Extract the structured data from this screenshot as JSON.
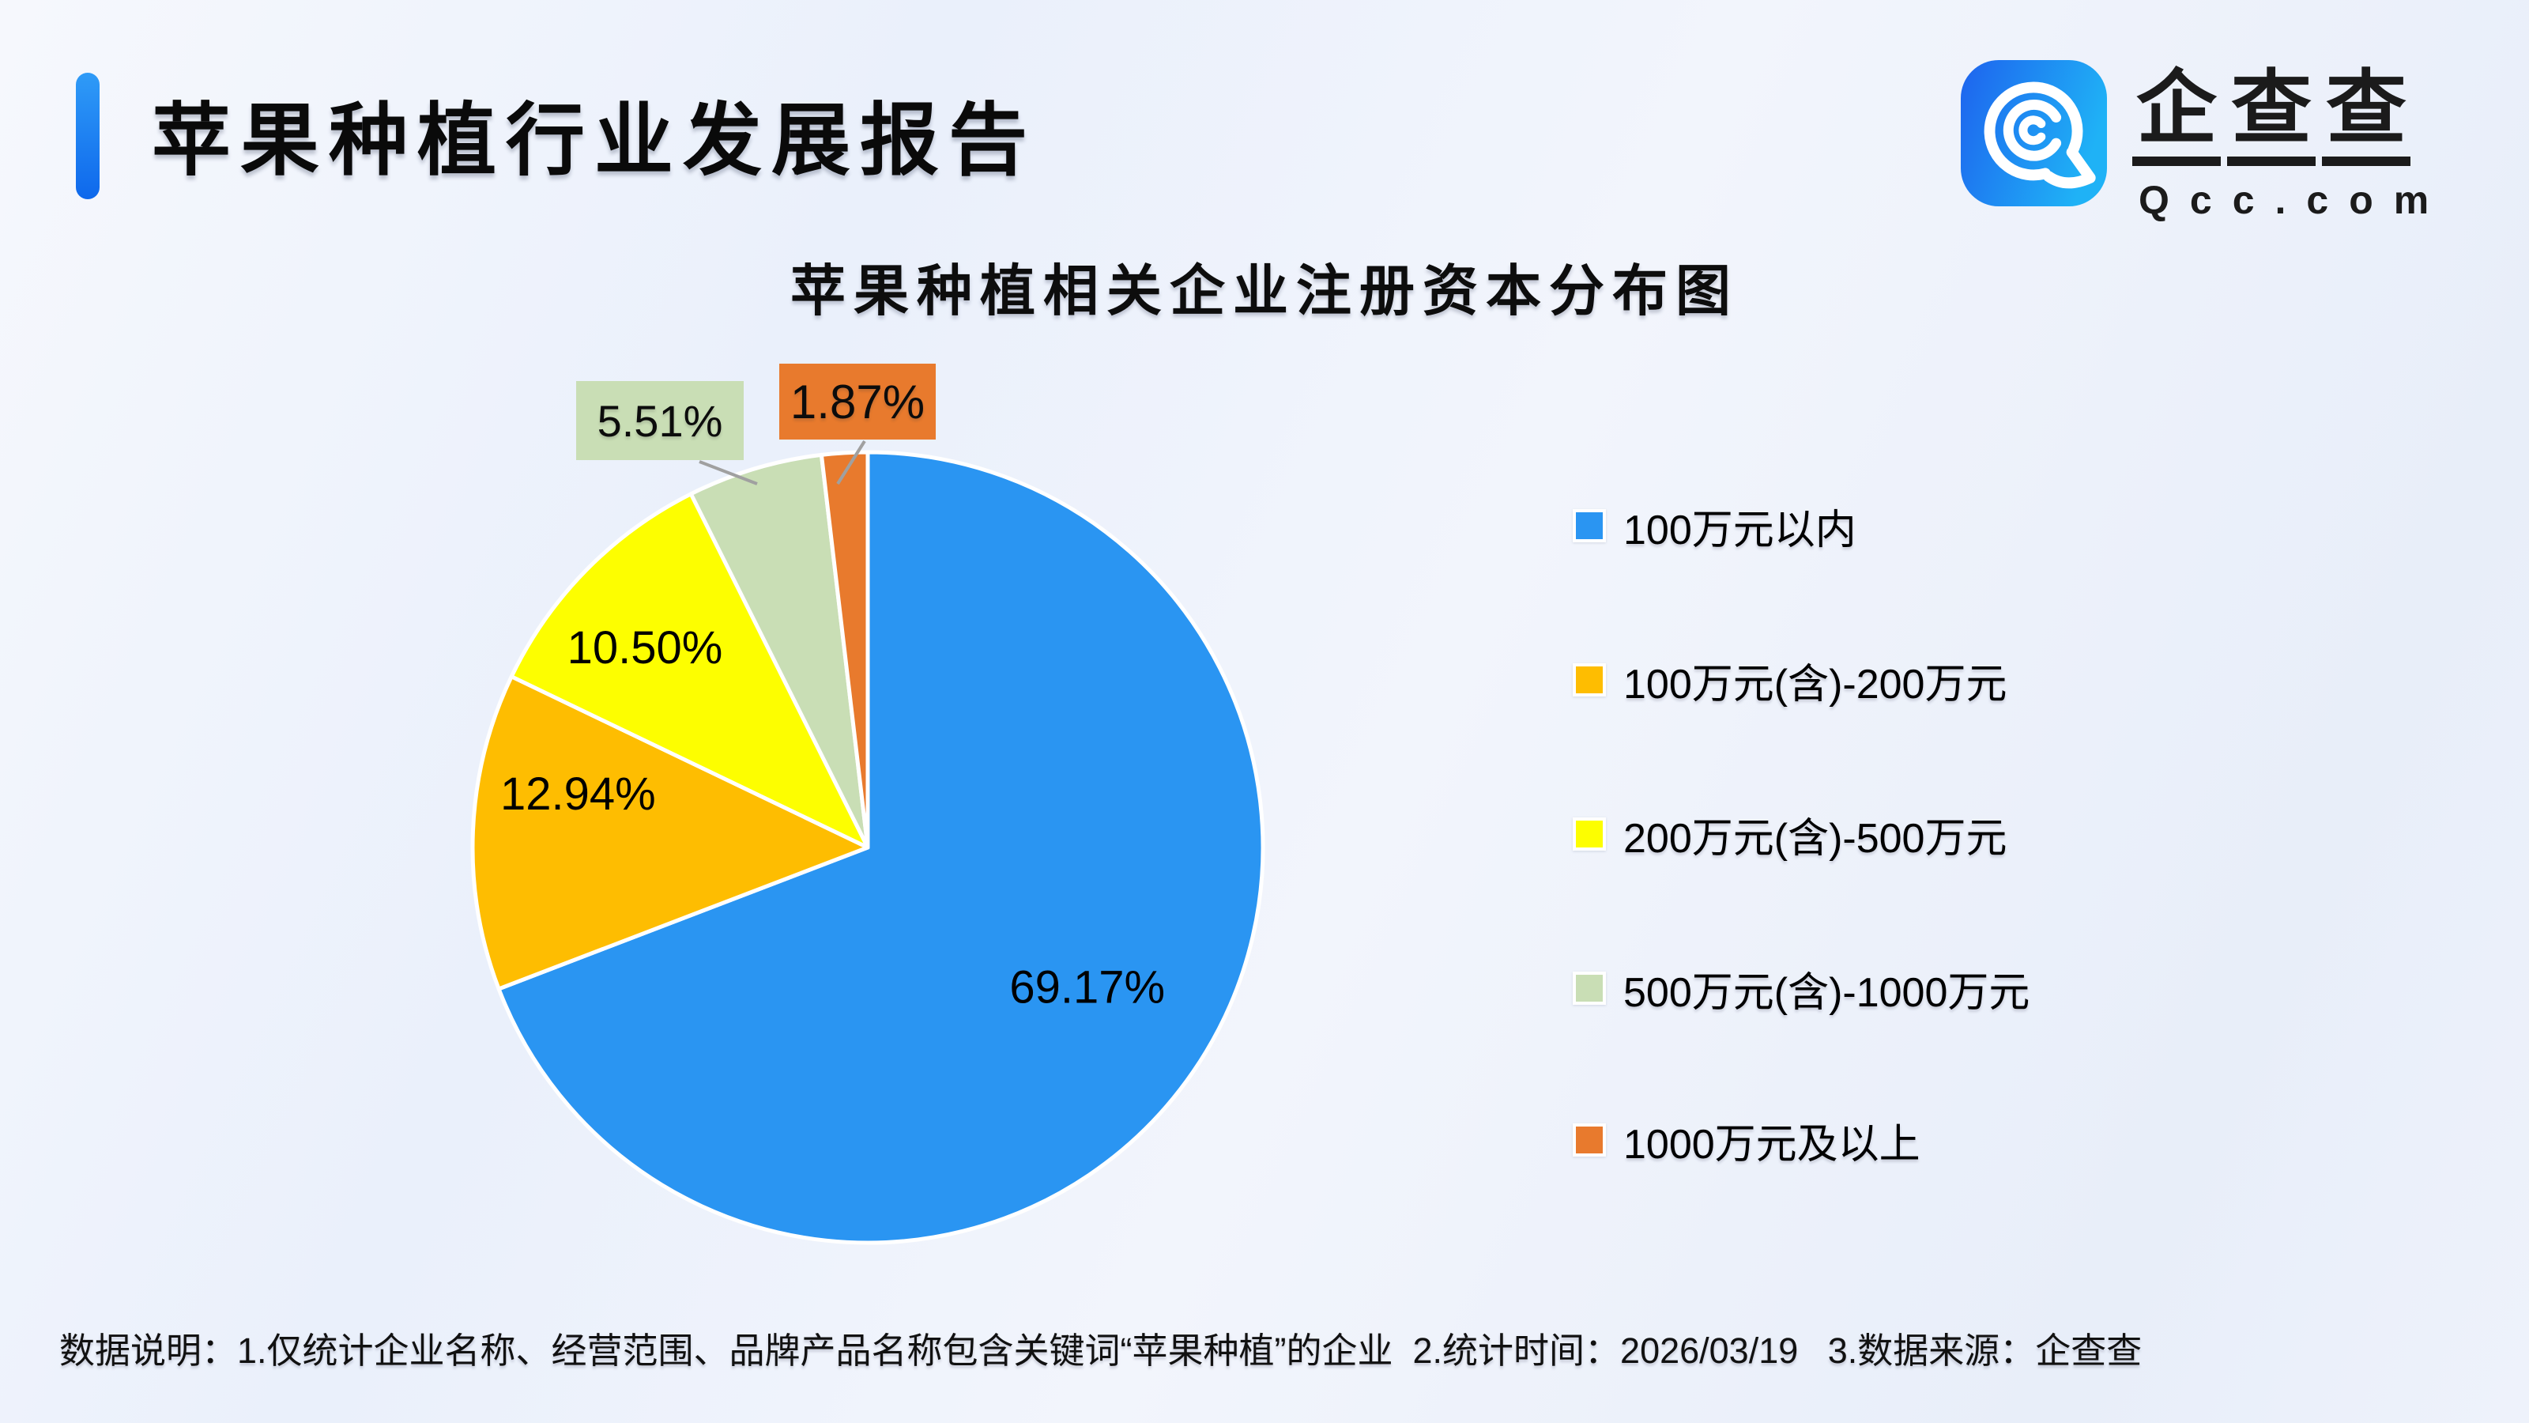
{
  "header": {
    "title": "苹果种植行业发展报告"
  },
  "logo": {
    "brand": "企查查",
    "domain": "Qcc.com",
    "icon": "qcc-magnifier-icon",
    "icon_color_start": "#1e63ee",
    "icon_color_end": "#1fb2f6"
  },
  "chart_data": {
    "type": "pie",
    "title": "苹果种植相关企业注册资本分布图",
    "unit": "%",
    "start_angle_deg": 0,
    "direction": "clockwise",
    "legend_position": "right",
    "series": [
      {
        "label": "100万元以内",
        "value": 69.17,
        "display": "69.17%",
        "color": "#2a95f2",
        "callout": false
      },
      {
        "label": "100万元(含)-200万元",
        "value": 12.94,
        "display": "12.94%",
        "color": "#febd01",
        "callout": false
      },
      {
        "label": "200万元(含)-500万元",
        "value": 10.5,
        "display": "10.50%",
        "color": "#fdfe00",
        "callout": false
      },
      {
        "label": "500万元(含)-1000万元",
        "value": 5.51,
        "display": "5.51%",
        "color": "#c9deb5",
        "callout": true
      },
      {
        "label": "1000万元及以上",
        "value": 1.87,
        "display": "1.87%",
        "color": "#e87a2d",
        "callout": true
      }
    ]
  },
  "footnote": {
    "text": "数据说明：1.仅统计企业名称、经营范围、品牌产品名称包含关键词“苹果种植”的企业  2.统计时间：2026/03/19   3.数据来源：企查查"
  }
}
